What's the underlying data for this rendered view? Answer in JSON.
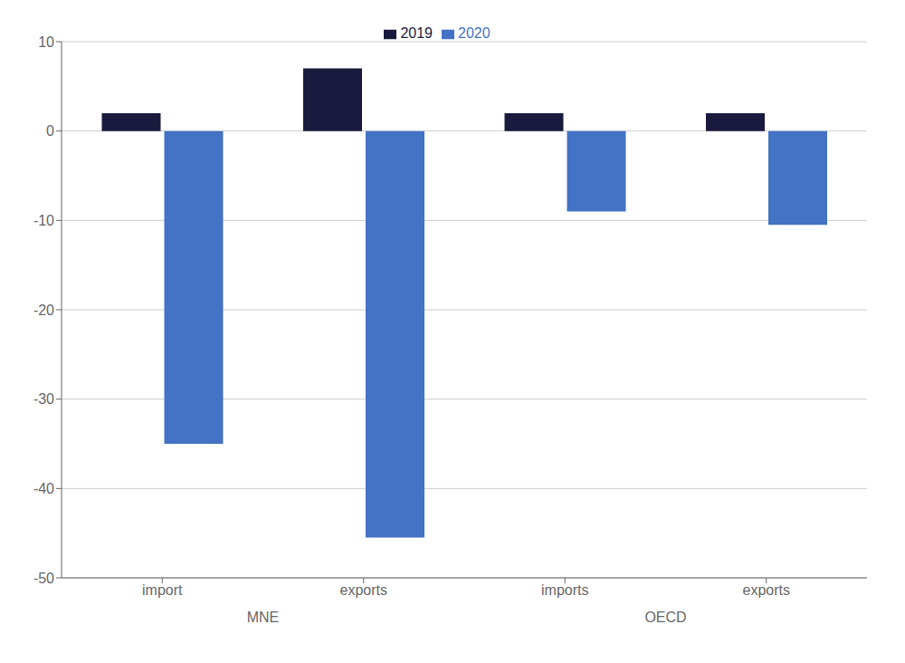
{
  "chart_data": {
    "type": "bar",
    "categories": [
      "import",
      "exports",
      "imports",
      "exports"
    ],
    "series": [
      {
        "name": "2019",
        "color": "#1a1a3e",
        "values": [
          2.0,
          7.0,
          2.0,
          2.0
        ]
      },
      {
        "name": "2020",
        "color": "#4472c4",
        "values": [
          -35.0,
          -45.5,
          -9.0,
          -10.5
        ]
      }
    ],
    "annotations": [
      "MNE",
      "OECD"
    ],
    "ylim": [
      -50,
      10
    ],
    "yticks": [
      -50,
      -40,
      -30,
      -20,
      -10,
      0,
      10
    ],
    "grid": true,
    "legend": "top"
  }
}
